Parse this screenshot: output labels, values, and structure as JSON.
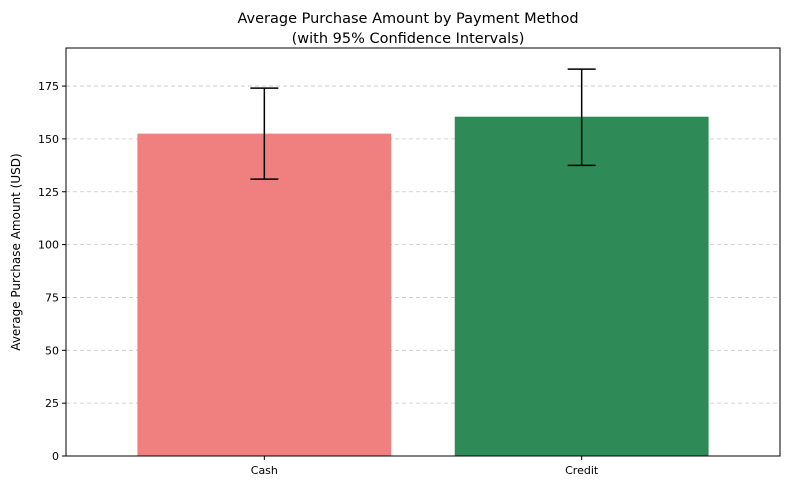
{
  "chart_data": {
    "type": "bar",
    "title": [
      "Average Purchase Amount by Payment Method",
      "(with 95% Confidence Intervals)"
    ],
    "xlabel": "",
    "ylabel": "Average Purchase Amount (USD)",
    "categories": [
      "Cash",
      "Credit"
    ],
    "values": [
      152.5,
      160.5
    ],
    "ci_lower": [
      131.0,
      137.5
    ],
    "ci_upper": [
      174.0,
      183.0
    ],
    "colors": [
      "#f08080",
      "#2e8b57"
    ],
    "ylim": [
      0,
      193
    ],
    "yticks": [
      0,
      25,
      50,
      75,
      100,
      125,
      150,
      175
    ],
    "grid": "y-dashed",
    "legend": "none"
  }
}
